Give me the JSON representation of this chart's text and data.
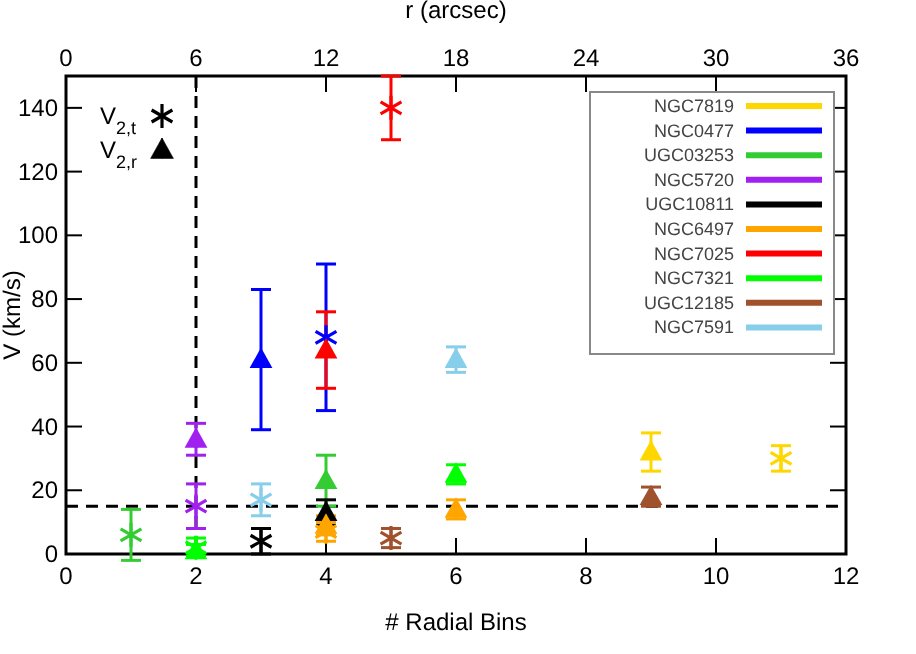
{
  "chart_data": {
    "type": "scatter",
    "xlabel": "# Radial Bins",
    "ylabel": "V (km/s)",
    "x2label": "r (arcsec)",
    "xlim": [
      0,
      12
    ],
    "xticks": [
      0,
      2,
      4,
      6,
      8,
      10,
      12
    ],
    "x2lim": [
      0,
      36
    ],
    "x2ticks": [
      0,
      6,
      12,
      18,
      24,
      30,
      36
    ],
    "ylim": [
      0,
      150
    ],
    "yticks": [
      0,
      20,
      40,
      60,
      80,
      100,
      120,
      140
    ],
    "legend": "top right",
    "grid": false,
    "annotations": [
      "V$_{2,t}$",
      "V$_{2,r}$"
    ],
    "ref_lines": [
      {
        "axis": "x",
        "value": 2,
        "line_style": "dashed",
        "color": "#000000"
      },
      {
        "axis": "y",
        "value": 15,
        "line_style": "dashed",
        "color": "#000000"
      }
    ],
    "series": [
      {
        "name": "NGC7819",
        "color": "#ffd700",
        "marker": "cross",
        "x": [
          11
        ],
        "values": [
          30
        ],
        "errors": [
          4
        ]
      },
      {
        "name": "NGC0477",
        "color": "#0000ff",
        "marker": "cross",
        "x": [
          4
        ],
        "values": [
          68
        ],
        "errors": [
          23
        ]
      },
      {
        "name": "UGC03253",
        "color": "#33cc33",
        "marker": "cross",
        "x": [
          1
        ],
        "values": [
          6
        ],
        "errors": [
          8
        ]
      },
      {
        "name": "NGC5720",
        "color": "#a020f0",
        "marker": "cross",
        "x": [
          2
        ],
        "values": [
          15
        ],
        "errors": [
          7
        ]
      },
      {
        "name": "UGC10811",
        "color": "#000000",
        "marker": "cross",
        "x": [
          3
        ],
        "values": [
          4
        ],
        "errors": [
          4
        ]
      },
      {
        "name": "NGC6497",
        "color": "#ffa500",
        "marker": "cross",
        "x": [
          4
        ],
        "values": [
          7
        ],
        "errors": [
          3
        ]
      },
      {
        "name": "NGC7025",
        "color": "#ff0000",
        "marker": "cross",
        "x": [
          5
        ],
        "values": [
          140
        ],
        "errors": [
          10
        ]
      },
      {
        "name": "NGC7321",
        "color": "#00ff00",
        "marker": "cross",
        "x": [
          2
        ],
        "values": [
          2
        ],
        "errors": [
          3
        ]
      },
      {
        "name": "UGC12185",
        "color": "#a0522d",
        "marker": "cross",
        "x": [
          5
        ],
        "values": [
          5
        ],
        "errors": [
          3
        ]
      },
      {
        "name": "NGC7591",
        "color": "#87ceeb",
        "marker": "cross",
        "x": [
          3
        ],
        "values": [
          17
        ],
        "errors": [
          5
        ]
      },
      {
        "color": "#ffd700",
        "marker": "triangle",
        "x": [
          9
        ],
        "values": [
          32
        ],
        "errors": [
          6
        ]
      },
      {
        "color": "#0000ff",
        "marker": "triangle",
        "x": [
          3
        ],
        "values": [
          61
        ],
        "errors": [
          22
        ]
      },
      {
        "color": "#33cc33",
        "marker": "triangle",
        "x": [
          4
        ],
        "values": [
          23
        ],
        "errors": [
          8
        ]
      },
      {
        "color": "#a020f0",
        "marker": "triangle",
        "x": [
          2
        ],
        "values": [
          36
        ],
        "errors": [
          5
        ]
      },
      {
        "color": "#000000",
        "marker": "triangle",
        "x": [
          4
        ],
        "values": [
          13
        ],
        "errors": [
          4
        ]
      },
      {
        "color": "#ffa500",
        "marker": "triangle",
        "x": [
          4,
          6
        ],
        "values": [
          9,
          14
        ],
        "errors": [
          3,
          3
        ]
      },
      {
        "color": "#ff0000",
        "marker": "triangle",
        "x": [
          4
        ],
        "values": [
          64
        ],
        "errors": [
          12
        ]
      },
      {
        "color": "#00ff00",
        "marker": "triangle",
        "x": [
          2,
          6
        ],
        "values": [
          1,
          25
        ],
        "errors": [
          2,
          3
        ]
      },
      {
        "color": "#a0522d",
        "marker": "triangle",
        "x": [
          9
        ],
        "values": [
          18
        ],
        "errors": [
          3
        ]
      },
      {
        "color": "#87ceeb",
        "marker": "triangle",
        "x": [
          6
        ],
        "values": [
          61
        ],
        "errors": [
          4
        ]
      }
    ]
  }
}
